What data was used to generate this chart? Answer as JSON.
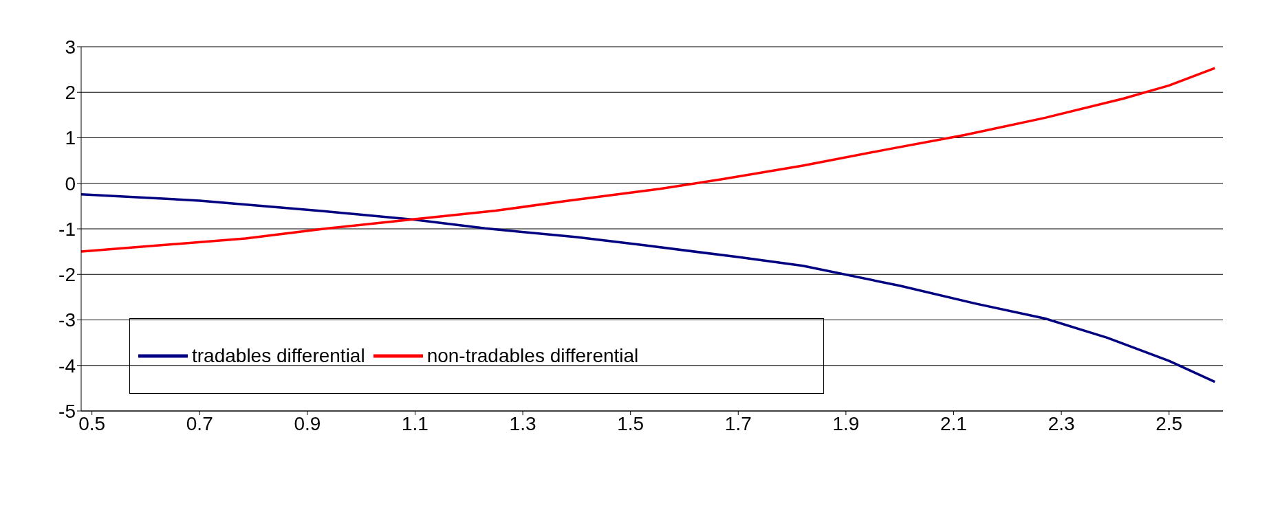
{
  "chart_data": {
    "type": "line",
    "xlim": [
      0.48,
      2.6
    ],
    "xticks": [
      0.5,
      0.7,
      0.9,
      1.1,
      1.3,
      1.5,
      1.7,
      1.9,
      2.1,
      2.3,
      2.5
    ],
    "ylim": [
      -5,
      3
    ],
    "yticks": [
      -5,
      -4,
      -3,
      -2,
      -1,
      0,
      1,
      2,
      3
    ],
    "grid": "y",
    "legend": "bottom left",
    "marker": "none",
    "line_style": "solid",
    "series": [
      {
        "name": "tradables differential",
        "color": "#000080",
        "x": [
          0.48,
          0.7,
          0.93,
          1.1,
          1.23,
          1.4,
          1.525,
          1.7,
          1.82,
          2.0,
          2.14,
          2.27,
          2.385,
          2.5,
          2.585
        ],
        "values": [
          -0.24,
          -0.38,
          -0.61,
          -0.8,
          -0.99,
          -1.18,
          -1.36,
          -1.62,
          -1.81,
          -2.25,
          -2.64,
          -2.97,
          -3.39,
          -3.9,
          -4.36
        ]
      },
      {
        "name": "non-tradables differential",
        "color": "#ff0000",
        "x": [
          0.48,
          0.785,
          0.93,
          1.08,
          1.25,
          1.38,
          1.555,
          1.67,
          1.82,
          1.97,
          2.12,
          2.27,
          2.415,
          2.5,
          2.585
        ],
        "values": [
          -1.5,
          -1.21,
          -1.0,
          -0.81,
          -0.6,
          -0.39,
          -0.12,
          0.09,
          0.39,
          0.73,
          1.06,
          1.44,
          1.86,
          2.15,
          2.53
        ]
      }
    ]
  }
}
